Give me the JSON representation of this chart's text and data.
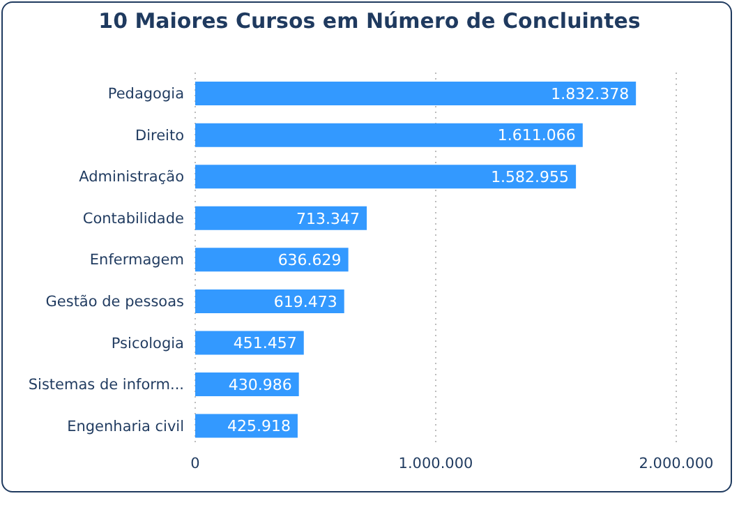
{
  "chart_data": {
    "type": "bar",
    "orientation": "horizontal",
    "title": "10 Maiores Cursos em Número de Concluintes",
    "categories": [
      "Pedagogia",
      "Direito",
      "Administração",
      "Contabilidade",
      "Enfermagem",
      "Gestão de pessoas",
      "Psicologia",
      "Sistemas de inform...",
      "Engenharia civil"
    ],
    "values": [
      1832378,
      1611066,
      1582955,
      713347,
      636629,
      619473,
      451457,
      430986,
      425918
    ],
    "value_labels": [
      "1.832.378",
      "1.611.066",
      "1.582.955",
      "713.347",
      "636.629",
      "619.473",
      "451.457",
      "430.986",
      "425.918"
    ],
    "color": "#3399ff",
    "xlim": [
      0,
      2000000
    ],
    "xticks": [
      0,
      {
        "value": 1000000,
        "label": "1.000.000"
      },
      {
        "value": 2000000,
        "label": "2.000.000"
      }
    ],
    "grid": "x"
  }
}
